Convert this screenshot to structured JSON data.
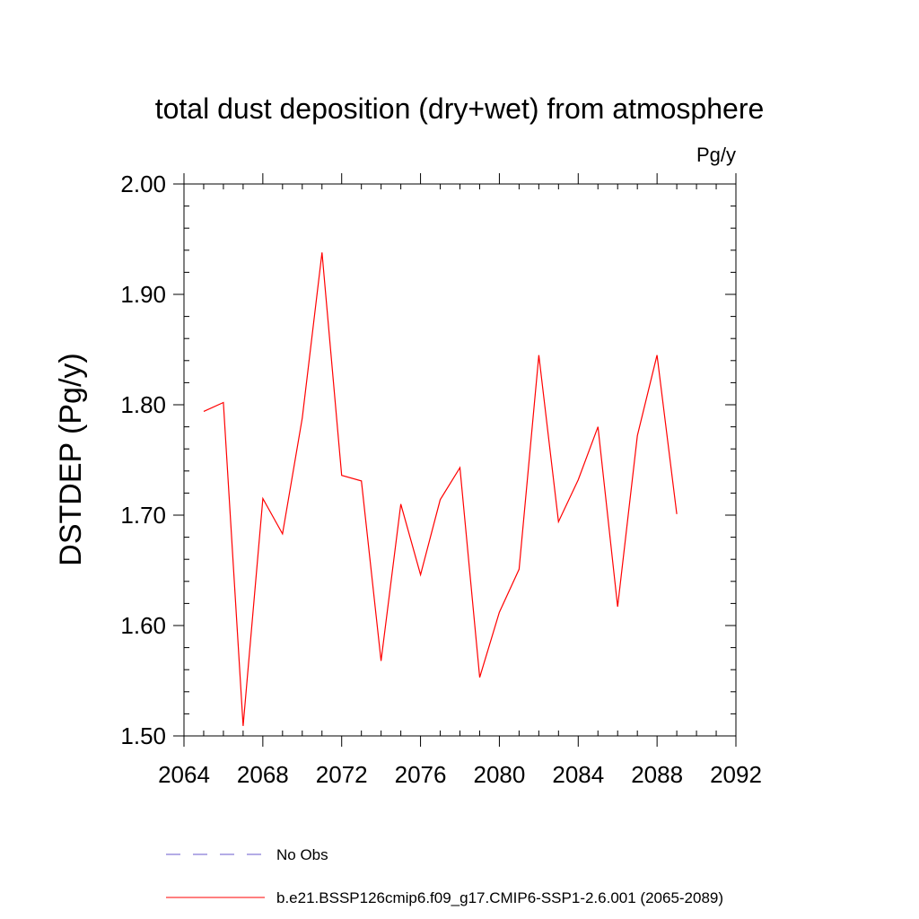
{
  "chart_data": {
    "type": "line",
    "title": "total dust deposition (dry+wet) from atmosphere",
    "units_label": "Pg/y",
    "ylabel": "DSTDEP  (Pg/y)",
    "xlabel": "",
    "xlim": [
      2064,
      2092
    ],
    "ylim": [
      1.5,
      2.0
    ],
    "x_ticks": [
      2064,
      2068,
      2072,
      2076,
      2080,
      2084,
      2088,
      2092
    ],
    "x_tick_labels": [
      "2064",
      "2068",
      "2072",
      "2076",
      "2080",
      "2084",
      "2088",
      "2092"
    ],
    "y_ticks": [
      1.5,
      1.6,
      1.7,
      1.8,
      1.9,
      2.0
    ],
    "y_tick_labels": [
      "1.50",
      "1.60",
      "1.70",
      "1.80",
      "1.90",
      "2.00"
    ],
    "grid": false,
    "legend_position": "bottom",
    "series": [
      {
        "name": "No Obs",
        "color": "#6a5acd",
        "style": "dashed",
        "x": [],
        "values": []
      },
      {
        "name": "b.e21.BSSP126cmip6.f09_g17.CMIP6-SSP1-2.6.001 (2065-2089)",
        "color": "#ff0000",
        "style": "solid",
        "x": [
          2065,
          2066,
          2067,
          2068,
          2069,
          2070,
          2071,
          2072,
          2073,
          2074,
          2075,
          2076,
          2077,
          2078,
          2079,
          2080,
          2081,
          2082,
          2083,
          2084,
          2085,
          2086,
          2087,
          2088,
          2089
        ],
        "values": [
          1.794,
          1.802,
          1.509,
          1.715,
          1.683,
          1.788,
          1.938,
          1.736,
          1.731,
          1.568,
          1.71,
          1.646,
          1.714,
          1.743,
          1.553,
          1.612,
          1.651,
          1.845,
          1.694,
          1.732,
          1.78,
          1.617,
          1.772,
          1.845,
          1.701
        ]
      }
    ]
  }
}
